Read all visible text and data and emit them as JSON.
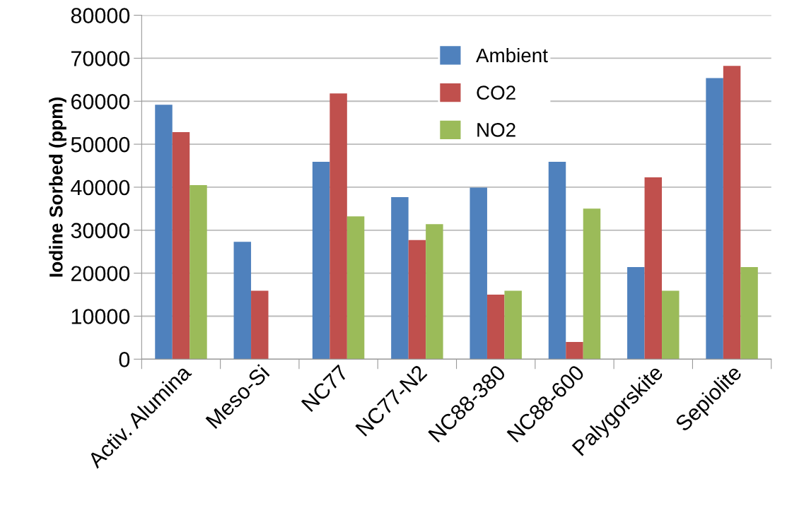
{
  "chart_data": {
    "type": "bar",
    "ylabel": "Iodine Sorbed (ppm)",
    "categories": [
      "Activ. Alumina",
      "Meso-Si",
      "NC77",
      "NC77-N2",
      "NC88-380",
      "NC88-600",
      "Palygorskite",
      "Sepiolite"
    ],
    "series": [
      {
        "name": "Ambient",
        "color": "#4f81bd",
        "values": [
          59200,
          27300,
          45900,
          37700,
          39900,
          45900,
          21400,
          65400
        ]
      },
      {
        "name": "CO2",
        "color": "#c0504d",
        "values": [
          52800,
          15900,
          61800,
          27700,
          15000,
          4000,
          42300,
          68200
        ]
      },
      {
        "name": "NO2",
        "color": "#9bbb59",
        "values": [
          40500,
          0,
          33200,
          31400,
          15900,
          35000,
          15900,
          21400
        ]
      }
    ],
    "ylim": [
      0,
      80000
    ],
    "yticks": [
      0,
      10000,
      20000,
      30000,
      40000,
      50000,
      60000,
      70000,
      80000
    ],
    "grid": "y",
    "legend": "top"
  }
}
